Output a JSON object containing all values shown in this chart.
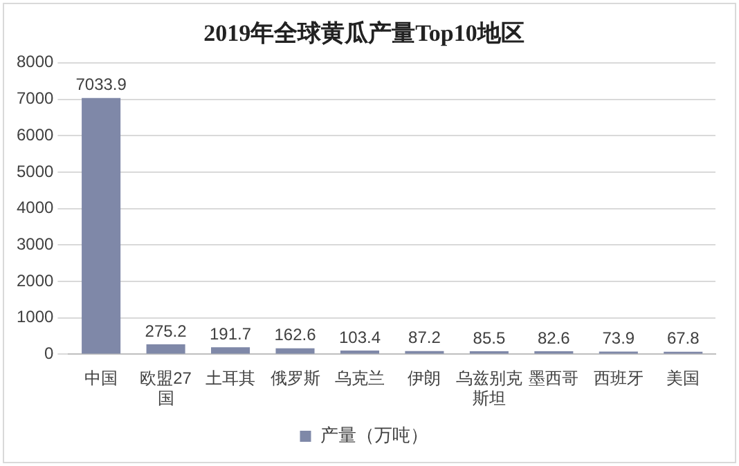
{
  "chart_data": {
    "type": "bar",
    "title": "2019年全球黄瓜产量Top10地区",
    "categories": [
      "中国",
      "欧盟27国",
      "土耳其",
      "俄罗斯",
      "乌克兰",
      "伊朗",
      "乌兹别克斯坦",
      "墨西哥",
      "西班牙",
      "美国"
    ],
    "series": [
      {
        "name": "产量（万吨）",
        "color": "#7f88a8",
        "values": [
          7033.9,
          275.2,
          191.7,
          162.6,
          103.4,
          87.2,
          85.5,
          82.6,
          73.9,
          67.8
        ]
      }
    ],
    "ylim": [
      0,
      8000
    ],
    "yticks": [
      0,
      1000,
      2000,
      3000,
      4000,
      5000,
      6000,
      7000,
      8000
    ],
    "grid": "y",
    "legend": "bottom",
    "data_labels": true
  }
}
